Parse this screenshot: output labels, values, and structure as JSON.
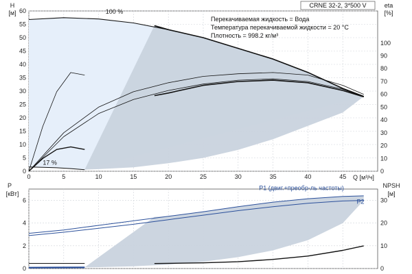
{
  "chart_data": [
    {
      "type": "line",
      "name": "upper",
      "title_box": "CRNE 32-2, 3*500 V",
      "info_lines": [
        "Перекачиваемая жидкость = Вода",
        "Температура перекачиваемой жидкости = 20 °C",
        "Плотность = 998.2 кг/м³"
      ],
      "xlabel": "Q [м³/ч]",
      "xlim": [
        0,
        50
      ],
      "xticks": [
        0,
        5,
        10,
        15,
        20,
        25,
        30,
        35,
        40,
        45
      ],
      "ylabel_left": [
        "H",
        "[м]"
      ],
      "ylim_left": [
        0,
        60
      ],
      "yticks_left": [
        0,
        5,
        10,
        15,
        20,
        25,
        30,
        35,
        40,
        45,
        50,
        55,
        60
      ],
      "ylabel_right": [
        "eta",
        "[%]"
      ],
      "ylim_right": [
        0,
        125
      ],
      "yticks_right": [
        0,
        10,
        20,
        30,
        40,
        50,
        60,
        70,
        80,
        90,
        100
      ],
      "annotations": [
        {
          "text": "100 %",
          "x": 11,
          "y": 59
        },
        {
          "text": "17 %",
          "x": 2,
          "y": 2.5
        }
      ],
      "colors": {
        "shade": "#c9d3de",
        "shade_light": "#e6effa",
        "curve": "#111111"
      },
      "series": [
        {
          "name": "H 100 %",
          "axis": "left",
          "x": [
            0,
            5,
            10,
            15,
            20,
            25,
            30,
            35,
            40,
            45,
            48
          ],
          "y": [
            56.8,
            57.5,
            57,
            55.5,
            53,
            50,
            46,
            42,
            37,
            31,
            28
          ]
        },
        {
          "name": "H 17 %",
          "axis": "left",
          "x": [
            0,
            2,
            4,
            6,
            8
          ],
          "y": [
            1.6,
            1.5,
            1.3,
            1.0,
            0.6
          ]
        },
        {
          "name": "H eff. zone upper",
          "axis": "left",
          "x": [
            18,
            20,
            25,
            30,
            35,
            40,
            45,
            48
          ],
          "y": [
            54.5,
            53,
            50,
            46,
            42,
            37,
            31,
            28
          ]
        },
        {
          "name": "H eff. zone lower",
          "axis": "left",
          "x": [
            8,
            10,
            15,
            20,
            25,
            30,
            35,
            40,
            45,
            48
          ],
          "y": [
            0.6,
            0.8,
            1.5,
            3,
            5,
            8,
            12,
            17,
            22,
            28
          ]
        },
        {
          "name": "eta 100 %",
          "axis": "right",
          "x": [
            0,
            5,
            10,
            15,
            20,
            25,
            30,
            35,
            40,
            45,
            48
          ],
          "y": [
            0,
            30,
            50,
            62,
            69,
            74,
            76,
            77,
            75,
            67,
            60
          ]
        },
        {
          "name": "eta motor",
          "axis": "right",
          "x": [
            0,
            5,
            10,
            15,
            20,
            25,
            30,
            35,
            40,
            45,
            48
          ],
          "y": [
            0,
            27,
            45,
            56,
            63,
            68,
            71,
            72,
            70,
            64,
            58
          ]
        },
        {
          "name": "eta total",
          "axis": "right",
          "x": [
            18,
            20,
            25,
            30,
            35,
            40,
            45,
            48
          ],
          "y": [
            59,
            61,
            67,
            70,
            71,
            69,
            63,
            58
          ]
        },
        {
          "name": "eta 17 %",
          "axis": "right",
          "x": [
            0,
            2,
            4,
            6,
            8
          ],
          "y": [
            0,
            35,
            62,
            77,
            75
          ]
        },
        {
          "name": "eta 17 % low",
          "axis": "right",
          "x": [
            0,
            2,
            4,
            6,
            8
          ],
          "y": [
            0,
            10,
            17,
            19,
            17
          ]
        }
      ]
    },
    {
      "type": "line",
      "name": "lower",
      "xlim": [
        0,
        50
      ],
      "ylabel_left": [
        "P",
        "[кВт]"
      ],
      "ylim_left": [
        0,
        7
      ],
      "yticks_left": [
        0,
        2,
        4,
        6
      ],
      "ylabel_right": [
        "NPSH",
        "[м]"
      ],
      "ylim_right": [
        0,
        35
      ],
      "yticks_right": [
        0,
        10,
        20,
        30
      ],
      "annotations": [
        {
          "text": "P1 (двиг.+преобр-ль частоты)",
          "x": 33,
          "y": 6.9
        },
        {
          "text": "P2",
          "x": 47,
          "y": 5.7
        }
      ],
      "colors": {
        "shade": "#c9d3de",
        "p1": "#2a4f9a",
        "p2": "#2a4f9a",
        "npsh": "#111111"
      },
      "series": [
        {
          "name": "P1",
          "axis": "left",
          "x": [
            0,
            5,
            10,
            15,
            20,
            25,
            30,
            35,
            40,
            45,
            48
          ],
          "y": [
            3.1,
            3.4,
            3.8,
            4.2,
            4.6,
            5.0,
            5.45,
            5.85,
            6.15,
            6.35,
            6.4
          ]
        },
        {
          "name": "P2",
          "axis": "left",
          "x": [
            0,
            5,
            10,
            15,
            20,
            25,
            30,
            35,
            40,
            45,
            48
          ],
          "y": [
            2.9,
            3.2,
            3.55,
            3.9,
            4.3,
            4.7,
            5.1,
            5.45,
            5.75,
            5.95,
            6.0
          ]
        },
        {
          "name": "P 17 %",
          "axis": "left",
          "x": [
            0,
            4,
            8
          ],
          "y": [
            0.08,
            0.09,
            0.1
          ]
        },
        {
          "name": "P1 17 %",
          "axis": "left",
          "x": [
            0,
            4,
            8
          ],
          "y": [
            0.45,
            0.45,
            0.45
          ]
        },
        {
          "name": "NPSH",
          "axis": "right",
          "x": [
            18,
            20,
            25,
            30,
            35,
            40,
            45,
            48
          ],
          "y": [
            2.2,
            2.3,
            2.5,
            3.0,
            4.0,
            5.5,
            8.0,
            10.0
          ]
        },
        {
          "name": "Shade upper",
          "axis": "left",
          "x": [
            18,
            20,
            25,
            30,
            35,
            40,
            45,
            48
          ],
          "y": [
            4.55,
            4.6,
            5.0,
            5.45,
            5.85,
            6.15,
            6.35,
            6.4
          ]
        },
        {
          "name": "Shade lower",
          "axis": "left",
          "x": [
            8,
            10,
            15,
            20,
            25,
            30,
            35,
            40,
            45,
            48
          ],
          "y": [
            0.1,
            0.12,
            0.2,
            0.35,
            0.6,
            1.0,
            1.6,
            2.5,
            4.0,
            6.0
          ]
        }
      ]
    }
  ]
}
